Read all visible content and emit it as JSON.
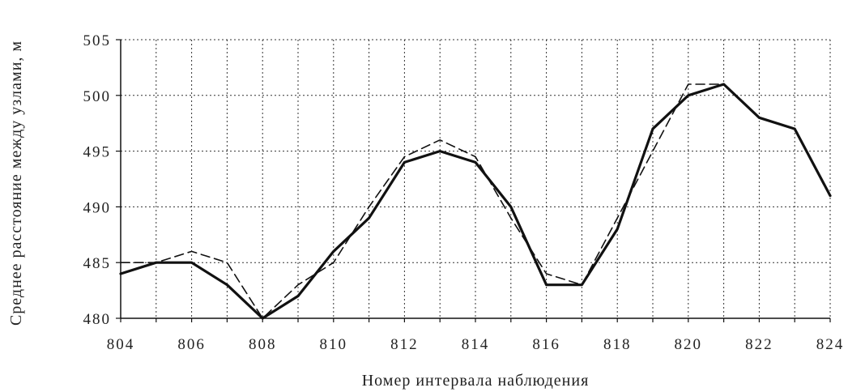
{
  "chart_data": {
    "type": "line",
    "xlabel": "Номер интервала наблюдения",
    "ylabel": "Среднее расстояние между узлами, м",
    "xlim": [
      804,
      824
    ],
    "ylim": [
      480,
      505
    ],
    "x_ticks": [
      804,
      806,
      808,
      810,
      812,
      814,
      816,
      818,
      820,
      822,
      824
    ],
    "y_ticks": [
      480,
      485,
      490,
      495,
      500,
      505
    ],
    "grid": true,
    "x": [
      804,
      805,
      806,
      807,
      808,
      809,
      810,
      811,
      812,
      813,
      814,
      815,
      816,
      817,
      818,
      819,
      820,
      821,
      822,
      823,
      824
    ],
    "series": [
      {
        "style": "solid",
        "color": "#111111",
        "values": [
          484,
          485,
          485,
          483,
          480,
          482,
          486,
          489,
          494,
          495,
          494,
          490,
          483,
          483,
          488,
          497,
          500,
          501,
          498,
          497,
          491
        ]
      },
      {
        "style": "dashed",
        "color": "#111111",
        "values": [
          485,
          485,
          486,
          485,
          480,
          483,
          485,
          490,
          494.5,
          496,
          494.5,
          489,
          484,
          483,
          489,
          495,
          501,
          501,
          498,
          497,
          491
        ]
      }
    ]
  }
}
